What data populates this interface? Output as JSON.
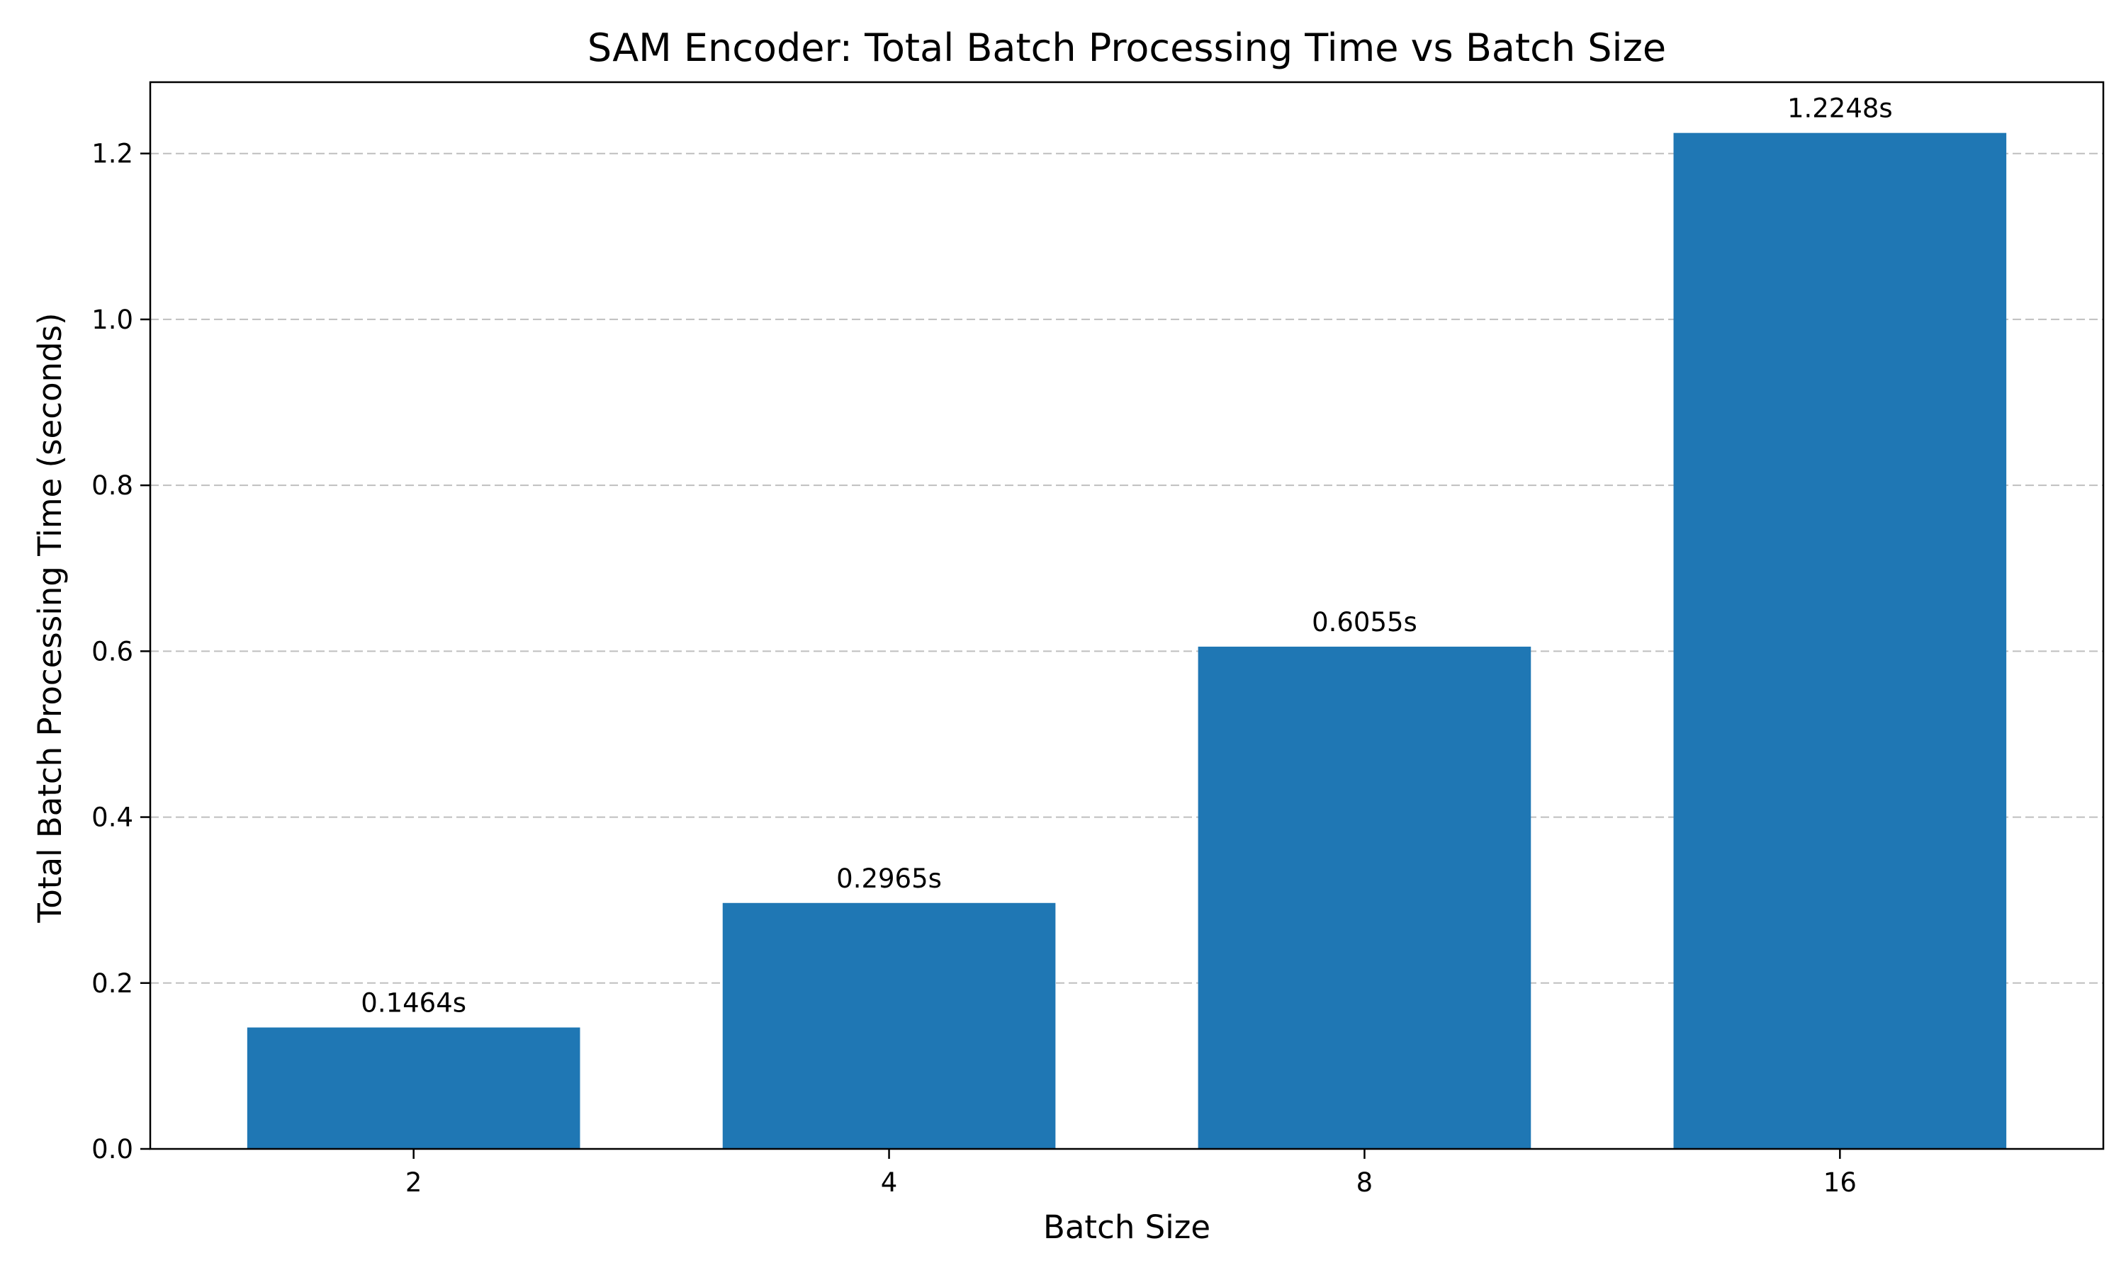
{
  "chart_data": {
    "type": "bar",
    "title": "SAM Encoder: Total Batch Processing Time vs Batch Size",
    "xlabel": "Batch Size",
    "ylabel": "Total Batch Processing Time (seconds)",
    "categories": [
      "2",
      "4",
      "8",
      "16"
    ],
    "values": [
      0.1464,
      0.2965,
      0.6055,
      1.2248
    ],
    "data_labels": [
      "0.1464s",
      "0.2965s",
      "0.6055s",
      "1.2248s"
    ],
    "ylim": [
      0,
      1.286
    ],
    "yticks": [
      0.0,
      0.2,
      0.4,
      0.6,
      0.8,
      1.0,
      1.2
    ],
    "ytick_labels": [
      "0.0",
      "0.2",
      "0.4",
      "0.6",
      "0.8",
      "1.0",
      "1.2"
    ],
    "grid": "y-dashed",
    "bar_color": "#1f77b4"
  }
}
